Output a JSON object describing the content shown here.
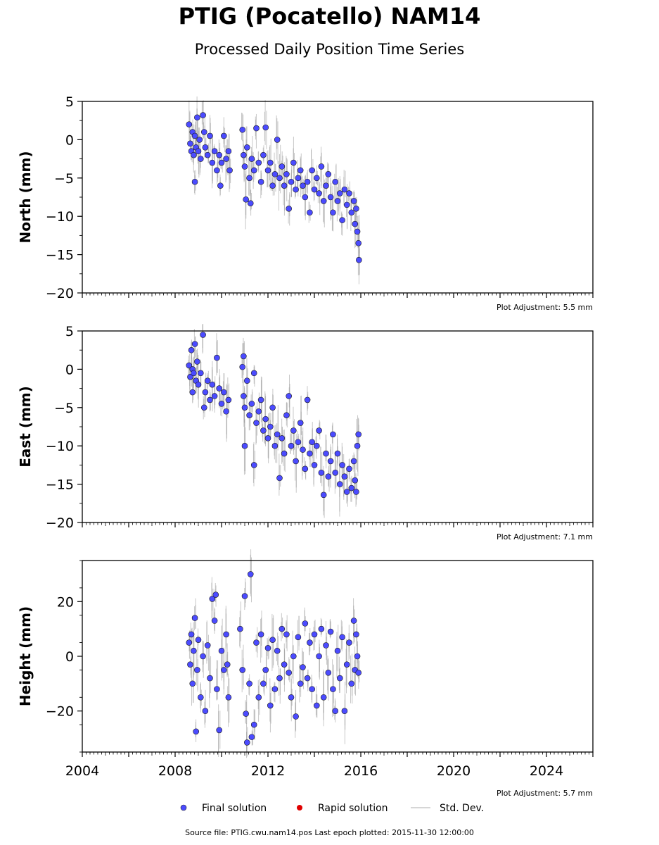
{
  "title": "PTIG (Pocatello) NAM14",
  "subtitle": "Processed Daily Position Time Series",
  "footer": "Source file: PTIG.cwu.nam14.pos  Last epoch plotted: 2015-11-30 12:00:00",
  "legend": {
    "final": "Final solution",
    "rapid": "Rapid solution",
    "std": "Std. Dev."
  },
  "colors": {
    "final": "#4b4bff",
    "rapid": "#e00000",
    "std": "#c8c8c8"
  },
  "chart_data": [
    {
      "type": "scatter",
      "ylabel": "North (mm)",
      "adjustment": "Plot Adjustment: 5.5 mm",
      "xlim": [
        2004,
        2026
      ],
      "ylim": [
        -20,
        5
      ],
      "yticks": [
        5,
        0,
        -5,
        -10,
        -15,
        -20
      ],
      "ytick_labels": [
        "5",
        "0",
        "−5",
        "−10",
        "−15",
        "−20"
      ],
      "series": [
        {
          "name": "Final solution",
          "points": [
            [
              2008.6,
              2.0
            ],
            [
              2008.65,
              -0.5
            ],
            [
              2008.7,
              -1.5
            ],
            [
              2008.75,
              1.0
            ],
            [
              2008.8,
              -2.0
            ],
            [
              2008.85,
              0.5
            ],
            [
              2008.9,
              -1.0
            ],
            [
              2008.95,
              2.9
            ],
            [
              2009.0,
              -1.5
            ],
            [
              2009.05,
              0.0
            ],
            [
              2009.1,
              -2.5
            ],
            [
              2009.2,
              3.2
            ],
            [
              2009.25,
              1.0
            ],
            [
              2009.3,
              -1.0
            ],
            [
              2009.4,
              -2.0
            ],
            [
              2009.5,
              0.5
            ],
            [
              2009.6,
              -3.0
            ],
            [
              2009.7,
              -1.5
            ],
            [
              2009.8,
              -4.0
            ],
            [
              2009.9,
              -2.0
            ],
            [
              2010.0,
              -3.0
            ],
            [
              2010.1,
              0.5
            ],
            [
              2010.2,
              -2.5
            ],
            [
              2010.3,
              -1.5
            ],
            [
              2010.35,
              -4.0
            ],
            [
              2008.85,
              -5.5
            ],
            [
              2009.95,
              -6.0
            ],
            [
              2010.9,
              1.3
            ],
            [
              2010.95,
              -2.0
            ],
            [
              2011.0,
              -3.5
            ],
            [
              2011.1,
              -1.0
            ],
            [
              2011.2,
              -5.0
            ],
            [
              2011.3,
              -2.5
            ],
            [
              2011.4,
              -4.0
            ],
            [
              2011.5,
              1.5
            ],
            [
              2011.6,
              -3.0
            ],
            [
              2011.7,
              -5.5
            ],
            [
              2011.8,
              -2.0
            ],
            [
              2011.9,
              1.6
            ],
            [
              2012.0,
              -4.0
            ],
            [
              2012.1,
              -3.0
            ],
            [
              2012.2,
              -6.0
            ],
            [
              2012.3,
              -4.5
            ],
            [
              2012.4,
              0.0
            ],
            [
              2012.5,
              -5.0
            ],
            [
              2012.6,
              -3.5
            ],
            [
              2012.7,
              -6.0
            ],
            [
              2012.8,
              -4.5
            ],
            [
              2012.9,
              -9.0
            ],
            [
              2013.0,
              -5.5
            ],
            [
              2013.1,
              -3.0
            ],
            [
              2013.2,
              -6.5
            ],
            [
              2013.3,
              -5.0
            ],
            [
              2013.4,
              -4.0
            ],
            [
              2013.5,
              -6.0
            ],
            [
              2013.6,
              -7.5
            ],
            [
              2013.7,
              -5.5
            ],
            [
              2013.8,
              -9.5
            ],
            [
              2013.9,
              -4.0
            ],
            [
              2014.0,
              -6.5
            ],
            [
              2014.1,
              -5.0
            ],
            [
              2014.2,
              -7.0
            ],
            [
              2014.3,
              -3.5
            ],
            [
              2014.4,
              -8.0
            ],
            [
              2014.5,
              -6.0
            ],
            [
              2014.6,
              -4.5
            ],
            [
              2014.7,
              -7.5
            ],
            [
              2014.8,
              -9.5
            ],
            [
              2014.9,
              -5.5
            ],
            [
              2015.0,
              -8.0
            ],
            [
              2015.1,
              -7.0
            ],
            [
              2015.2,
              -10.5
            ],
            [
              2015.3,
              -6.5
            ],
            [
              2015.4,
              -8.5
            ],
            [
              2015.5,
              -7.0
            ],
            [
              2015.6,
              -9.5
            ],
            [
              2015.7,
              -8.0
            ],
            [
              2015.75,
              -11.0
            ],
            [
              2015.8,
              -9.0
            ],
            [
              2015.85,
              -12.0
            ],
            [
              2015.9,
              -13.5
            ],
            [
              2015.92,
              -15.7
            ],
            [
              2011.25,
              -8.3
            ],
            [
              2011.05,
              -7.8
            ]
          ]
        }
      ]
    },
    {
      "type": "scatter",
      "ylabel": "East (mm)",
      "adjustment": "Plot Adjustment: 7.1 mm",
      "xlim": [
        2004,
        2026
      ],
      "ylim": [
        -20,
        5
      ],
      "yticks": [
        5,
        0,
        -5,
        -10,
        -15,
        -20
      ],
      "ytick_labels": [
        "5",
        "0",
        "−5",
        "−10",
        "−15",
        "−20"
      ],
      "series": [
        {
          "name": "Final solution",
          "points": [
            [
              2008.6,
              0.5
            ],
            [
              2008.65,
              -1.0
            ],
            [
              2008.7,
              2.5
            ],
            [
              2008.75,
              0.0
            ],
            [
              2008.8,
              -0.5
            ],
            [
              2008.85,
              3.3
            ],
            [
              2008.9,
              -1.5
            ],
            [
              2008.95,
              1.0
            ],
            [
              2009.0,
              -2.0
            ],
            [
              2009.1,
              -0.5
            ],
            [
              2009.2,
              4.5
            ],
            [
              2009.3,
              -3.0
            ],
            [
              2009.4,
              -1.5
            ],
            [
              2009.5,
              -4.0
            ],
            [
              2009.6,
              -2.0
            ],
            [
              2009.7,
              -3.5
            ],
            [
              2009.8,
              1.5
            ],
            [
              2009.9,
              -2.5
            ],
            [
              2010.0,
              -4.5
            ],
            [
              2010.1,
              -3.0
            ],
            [
              2010.2,
              -5.5
            ],
            [
              2010.3,
              -4.0
            ],
            [
              2008.75,
              -3.0
            ],
            [
              2009.25,
              -5.0
            ],
            [
              2010.9,
              0.3
            ],
            [
              2010.95,
              -3.5
            ],
            [
              2011.0,
              -5.0
            ],
            [
              2011.1,
              -1.5
            ],
            [
              2011.2,
              -6.0
            ],
            [
              2011.3,
              -4.5
            ],
            [
              2011.4,
              -0.5
            ],
            [
              2011.5,
              -7.0
            ],
            [
              2011.6,
              -5.5
            ],
            [
              2011.7,
              -4.0
            ],
            [
              2011.8,
              -8.0
            ],
            [
              2011.9,
              -6.5
            ],
            [
              2012.0,
              -9.0
            ],
            [
              2012.1,
              -7.5
            ],
            [
              2012.2,
              -5.0
            ],
            [
              2012.3,
              -10.0
            ],
            [
              2012.4,
              -8.5
            ],
            [
              2012.5,
              -14.2
            ],
            [
              2012.6,
              -9.0
            ],
            [
              2012.7,
              -11.0
            ],
            [
              2012.8,
              -6.0
            ],
            [
              2012.9,
              -3.5
            ],
            [
              2013.0,
              -10.0
            ],
            [
              2013.1,
              -8.0
            ],
            [
              2013.2,
              -12.0
            ],
            [
              2013.3,
              -9.5
            ],
            [
              2013.4,
              -7.0
            ],
            [
              2013.5,
              -10.5
            ],
            [
              2013.6,
              -13.0
            ],
            [
              2013.7,
              -4.0
            ],
            [
              2013.8,
              -11.0
            ],
            [
              2013.9,
              -9.5
            ],
            [
              2014.0,
              -12.5
            ],
            [
              2014.1,
              -10.0
            ],
            [
              2014.2,
              -8.0
            ],
            [
              2014.3,
              -13.5
            ],
            [
              2014.4,
              -16.4
            ],
            [
              2014.5,
              -11.0
            ],
            [
              2014.6,
              -14.0
            ],
            [
              2014.7,
              -12.0
            ],
            [
              2014.8,
              -8.5
            ],
            [
              2014.9,
              -13.5
            ],
            [
              2015.0,
              -11.0
            ],
            [
              2015.1,
              -15.0
            ],
            [
              2015.2,
              -12.5
            ],
            [
              2015.3,
              -14.0
            ],
            [
              2015.4,
              -16.0
            ],
            [
              2015.5,
              -13.0
            ],
            [
              2015.6,
              -15.5
            ],
            [
              2015.7,
              -12.0
            ],
            [
              2015.75,
              -14.5
            ],
            [
              2015.8,
              -16.0
            ],
            [
              2015.85,
              -10.0
            ],
            [
              2015.9,
              -8.5
            ],
            [
              2010.95,
              1.7
            ],
            [
              2011.4,
              -12.5
            ],
            [
              2011.0,
              -10.0
            ]
          ]
        }
      ]
    },
    {
      "type": "scatter",
      "ylabel": "Height (mm)",
      "adjustment": "Plot Adjustment: 5.7 mm",
      "xlim": [
        2004,
        2026
      ],
      "ylim": [
        -35,
        35
      ],
      "yticks": [
        20,
        0,
        -20
      ],
      "ytick_labels": [
        "20",
        "0",
        "−20"
      ],
      "xticks": [
        2004,
        2008,
        2012,
        2016,
        2020,
        2024
      ],
      "xtick_labels": [
        "2004",
        "2008",
        "2012",
        "2016",
        "2020",
        "2024"
      ],
      "series": [
        {
          "name": "Final solution",
          "points": [
            [
              2008.6,
              5.0
            ],
            [
              2008.65,
              -3.0
            ],
            [
              2008.7,
              8.0
            ],
            [
              2008.75,
              -10.0
            ],
            [
              2008.8,
              2.0
            ],
            [
              2008.85,
              14.0
            ],
            [
              2008.9,
              -27.5
            ],
            [
              2008.95,
              -5.0
            ],
            [
              2009.0,
              6.0
            ],
            [
              2009.1,
              -15.0
            ],
            [
              2009.2,
              0.0
            ],
            [
              2009.3,
              -20.0
            ],
            [
              2009.4,
              4.0
            ],
            [
              2009.5,
              -8.0
            ],
            [
              2009.6,
              21.0
            ],
            [
              2009.7,
              13.0
            ],
            [
              2009.8,
              -12.0
            ],
            [
              2009.9,
              -27.0
            ],
            [
              2010.0,
              2.0
            ],
            [
              2010.1,
              -5.0
            ],
            [
              2010.2,
              8.0
            ],
            [
              2010.3,
              -15.0
            ],
            [
              2009.75,
              22.5
            ],
            [
              2010.25,
              -3.0
            ],
            [
              2010.8,
              10.0
            ],
            [
              2010.9,
              -5.0
            ],
            [
              2011.0,
              22.0
            ],
            [
              2011.05,
              -21.0
            ],
            [
              2011.1,
              -31.5
            ],
            [
              2011.2,
              -10.0
            ],
            [
              2011.25,
              30.0
            ],
            [
              2011.3,
              -29.5
            ],
            [
              2011.4,
              -25.0
            ],
            [
              2011.5,
              5.0
            ],
            [
              2011.6,
              -15.0
            ],
            [
              2011.7,
              8.0
            ],
            [
              2011.8,
              -10.0
            ],
            [
              2011.9,
              -5.0
            ],
            [
              2012.0,
              3.0
            ],
            [
              2012.1,
              -18.0
            ],
            [
              2012.2,
              6.0
            ],
            [
              2012.3,
              -12.0
            ],
            [
              2012.4,
              2.0
            ],
            [
              2012.5,
              -8.0
            ],
            [
              2012.6,
              10.0
            ],
            [
              2012.7,
              -3.0
            ],
            [
              2012.8,
              8.0
            ],
            [
              2012.9,
              -6.0
            ],
            [
              2013.0,
              -15.0
            ],
            [
              2013.1,
              0.0
            ],
            [
              2013.2,
              -22.0
            ],
            [
              2013.3,
              7.0
            ],
            [
              2013.4,
              -10.0
            ],
            [
              2013.5,
              -4.0
            ],
            [
              2013.6,
              12.0
            ],
            [
              2013.7,
              -8.0
            ],
            [
              2013.8,
              5.0
            ],
            [
              2013.9,
              -12.0
            ],
            [
              2014.0,
              8.0
            ],
            [
              2014.1,
              -18.0
            ],
            [
              2014.2,
              0.0
            ],
            [
              2014.3,
              10.0
            ],
            [
              2014.4,
              -15.0
            ],
            [
              2014.5,
              4.0
            ],
            [
              2014.6,
              -6.0
            ],
            [
              2014.7,
              9.0
            ],
            [
              2014.8,
              -12.0
            ],
            [
              2014.9,
              -20.0
            ],
            [
              2015.0,
              2.0
            ],
            [
              2015.1,
              -8.0
            ],
            [
              2015.2,
              7.0
            ],
            [
              2015.3,
              -20.0
            ],
            [
              2015.4,
              -3.0
            ],
            [
              2015.5,
              5.0
            ],
            [
              2015.6,
              -10.0
            ],
            [
              2015.7,
              13.0
            ],
            [
              2015.75,
              -5.0
            ],
            [
              2015.8,
              8.0
            ],
            [
              2015.85,
              0.0
            ],
            [
              2015.9,
              -6.0
            ]
          ]
        }
      ]
    }
  ]
}
